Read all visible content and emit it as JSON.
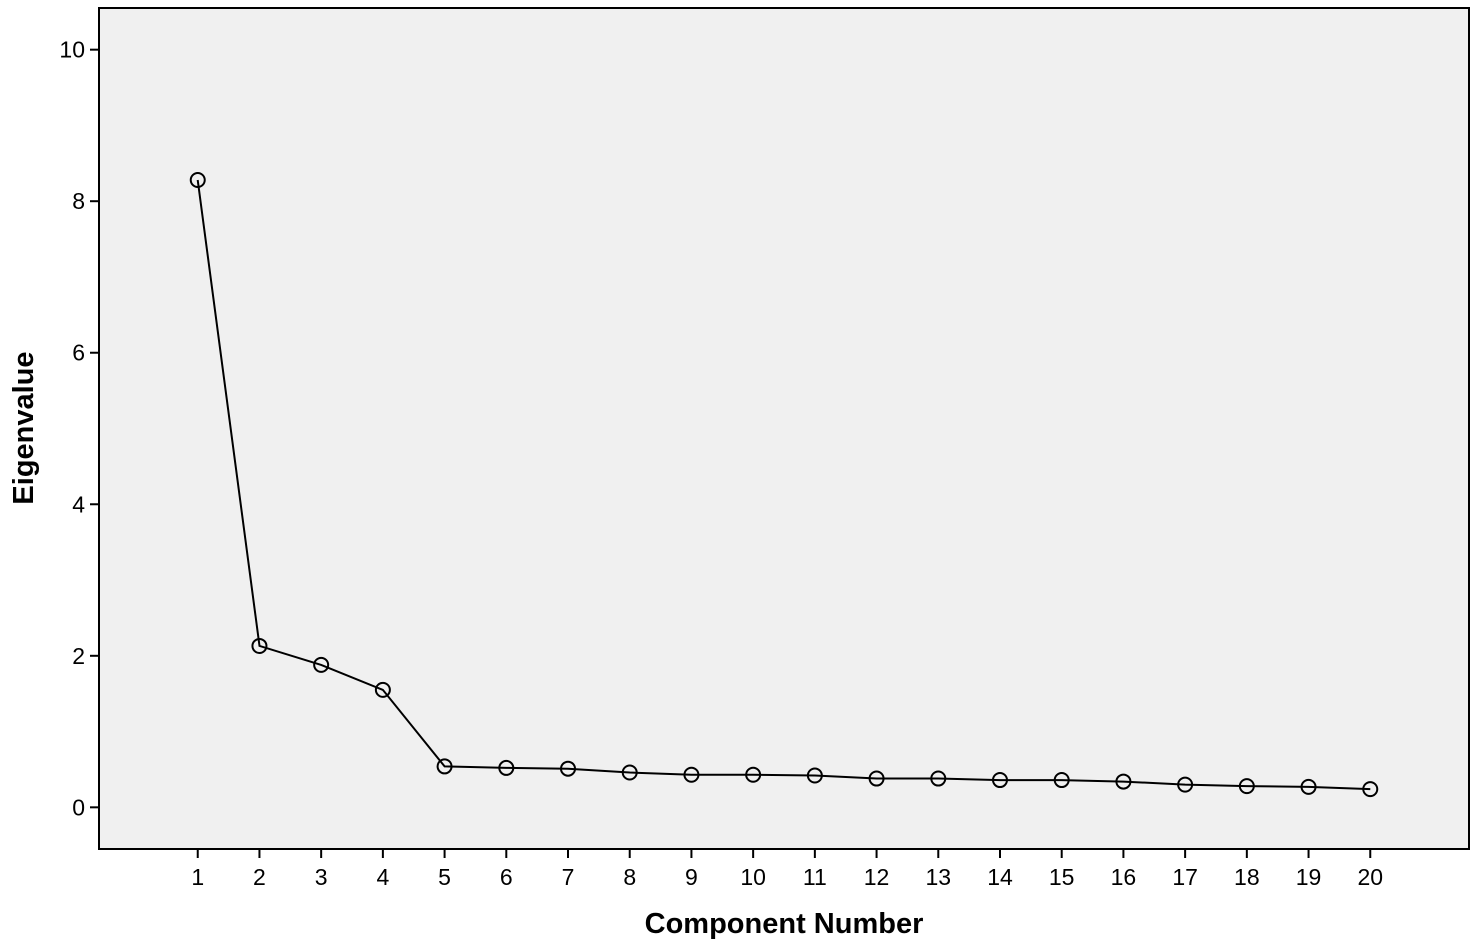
{
  "chart_data": {
    "type": "line",
    "title": "",
    "xlabel": "Component Number",
    "ylabel": "Eigenvalue",
    "x": [
      1,
      2,
      3,
      4,
      5,
      6,
      7,
      8,
      9,
      10,
      11,
      12,
      13,
      14,
      15,
      16,
      17,
      18,
      19,
      20
    ],
    "series": [
      {
        "values": [
          8.28,
          2.13,
          1.88,
          1.55,
          0.54,
          0.52,
          0.51,
          0.46,
          0.43,
          0.43,
          0.42,
          0.38,
          0.38,
          0.36,
          0.36,
          0.34,
          0.3,
          0.28,
          0.27,
          0.24
        ]
      }
    ],
    "xlim": [
      -0.6,
      21.6
    ],
    "ylim": [
      -0.55,
      10.55
    ],
    "yticks": [
      0,
      2,
      4,
      6,
      8,
      10
    ],
    "grid": false,
    "marker": "open-circle",
    "colors": {
      "plot_background": "#f0f0f0",
      "line": "#000000"
    }
  }
}
